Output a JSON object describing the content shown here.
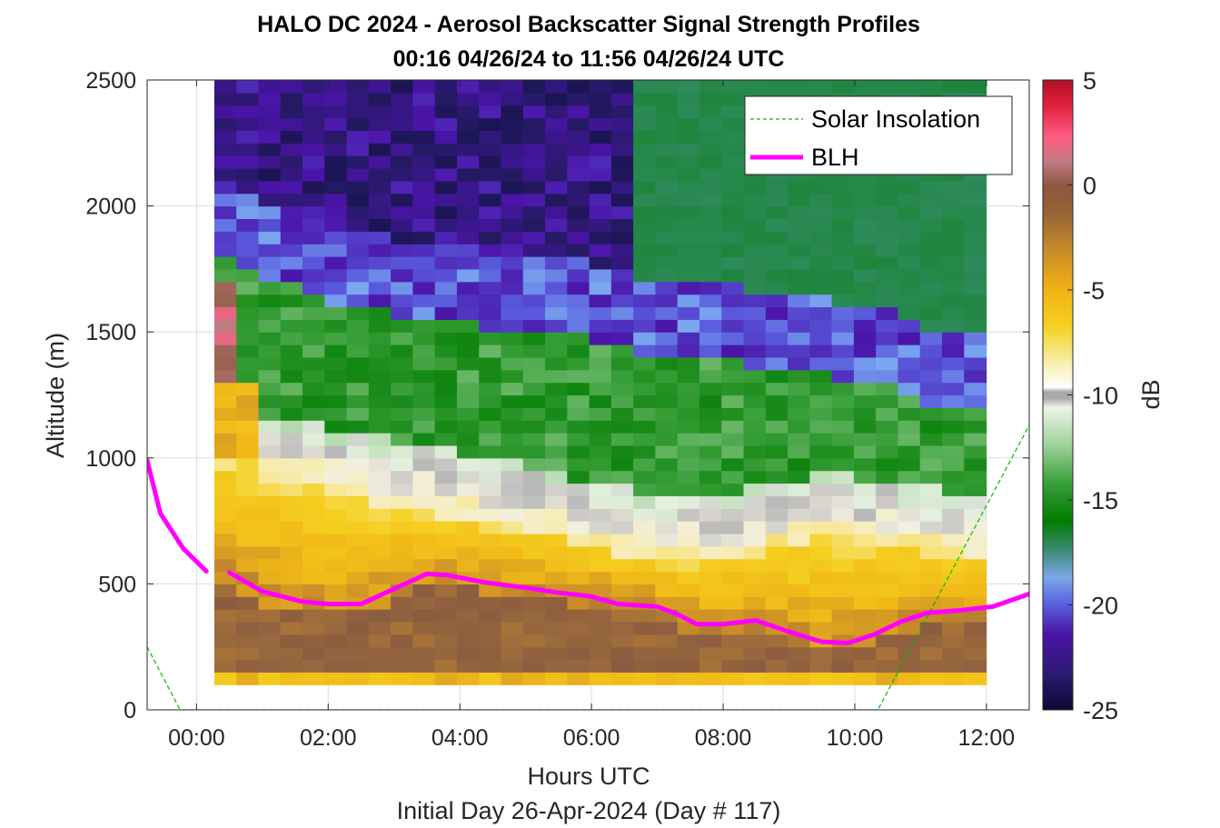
{
  "chart_data": {
    "type": "heatmap",
    "title": "HALO DC 2024 - Aerosol Backscatter Signal Strength Profiles",
    "subtitle": "00:16 04/26/24 to 11:56 04/26/24  UTC",
    "xlabel": "Hours UTC",
    "footer": "Initial Day 26-Apr-2024 (Day # 117)",
    "ylabel": "Altitude (m)",
    "colorbar_label": "dB",
    "xlim": [
      -0.75,
      12.65
    ],
    "ylim": [
      0,
      2500
    ],
    "x_ticks": [
      0,
      2,
      4,
      6,
      8,
      10,
      12
    ],
    "x_tick_labels": [
      "00:00",
      "02:00",
      "04:00",
      "06:00",
      "08:00",
      "10:00",
      "12:00"
    ],
    "y_ticks": [
      0,
      500,
      1000,
      1500,
      2000,
      2500
    ],
    "y_tick_labels": [
      "0",
      "500",
      "1000",
      "1500",
      "2000",
      "2500"
    ],
    "clim": [
      -25,
      5
    ],
    "colorbar_ticks": [
      5,
      0,
      -5,
      -10,
      -15,
      -20,
      -25
    ],
    "colorbar_tick_labels": [
      "5",
      "0",
      "-5",
      "-10",
      "-15",
      "-20",
      "-25"
    ],
    "grid": true,
    "legend_position": "top-right",
    "legend": [
      "Solar Insolation",
      "BLH"
    ],
    "heat": {
      "x_start": 0.27,
      "x_step": 0.335,
      "columns": 35,
      "y_bottom": 100,
      "y_step": 50,
      "rows": 48
    },
    "blh_segments": [
      [
        [
          -0.75,
          990
        ],
        [
          -0.55,
          780
        ],
        [
          -0.2,
          640
        ],
        [
          0.15,
          550
        ]
      ],
      [
        [
          0.5,
          545
        ],
        [
          1.0,
          470
        ],
        [
          1.6,
          430
        ],
        [
          2.0,
          420
        ],
        [
          2.5,
          420
        ],
        [
          3.0,
          480
        ],
        [
          3.5,
          540
        ],
        [
          3.8,
          535
        ],
        [
          4.4,
          505
        ],
        [
          5.0,
          485
        ],
        [
          5.5,
          465
        ],
        [
          6.0,
          450
        ],
        [
          6.4,
          420
        ],
        [
          7.0,
          410
        ],
        [
          7.3,
          380
        ],
        [
          7.6,
          340
        ],
        [
          8.0,
          340
        ],
        [
          8.5,
          355
        ],
        [
          9.0,
          310
        ],
        [
          9.5,
          270
        ],
        [
          9.9,
          265
        ],
        [
          10.3,
          300
        ],
        [
          10.7,
          350
        ],
        [
          11.1,
          385
        ],
        [
          11.6,
          395
        ],
        [
          12.1,
          410
        ],
        [
          12.65,
          460
        ]
      ]
    ],
    "solar_insolation": [
      [
        -0.75,
        250
      ],
      [
        -0.25,
        0
      ],
      [
        10.35,
        0
      ],
      [
        12.65,
        1130
      ]
    ],
    "colors": {
      "blh": "#ff00ff",
      "solar": "#00bb00"
    }
  }
}
